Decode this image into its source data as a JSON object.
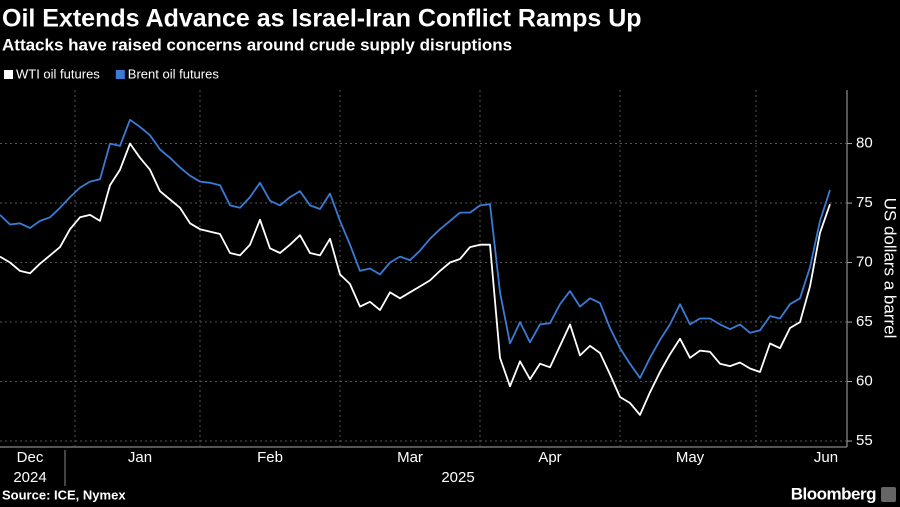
{
  "chart_data": {
    "type": "line",
    "title": "Oil Extends Advance as Israel-Iran Conflict Ramps Up",
    "subtitle": "Attacks have raised concerns around crude supply disruptions",
    "y_axis_label": "US dollars a barrel",
    "source": "Source: ICE, Nymex",
    "brand": "Bloomberg",
    "year_labels": [
      "2024",
      "2025"
    ],
    "categories": [
      null,
      null,
      null,
      "Dec",
      null,
      null,
      null,
      null,
      null,
      null,
      null,
      null,
      null,
      null,
      "Jan",
      null,
      null,
      null,
      null,
      null,
      null,
      null,
      null,
      null,
      null,
      null,
      null,
      "Feb",
      null,
      null,
      null,
      null,
      null,
      null,
      null,
      null,
      null,
      null,
      null,
      null,
      null,
      "Mar",
      null,
      null,
      null,
      null,
      null,
      null,
      null,
      null,
      null,
      null,
      null,
      null,
      null,
      "Apr",
      null,
      null,
      null,
      null,
      null,
      null,
      null,
      null,
      null,
      null,
      null,
      null,
      null,
      "May",
      null,
      null,
      null,
      null,
      null,
      null,
      null,
      null,
      null,
      null,
      null,
      null,
      null,
      "Jun"
    ],
    "series": [
      {
        "name": "WTI oil futures",
        "color": "#ffffff",
        "values": [
          70.5,
          70.0,
          69.3,
          69.1,
          69.9,
          70.6,
          71.3,
          72.8,
          73.8,
          74.0,
          73.5,
          76.5,
          77.8,
          80.0,
          78.8,
          77.8,
          76.0,
          75.3,
          74.6,
          73.3,
          72.8,
          72.6,
          72.4,
          70.8,
          70.6,
          71.5,
          73.6,
          71.2,
          70.8,
          71.5,
          72.3,
          70.8,
          70.6,
          72.0,
          69.0,
          68.2,
          66.3,
          66.7,
          66.0,
          67.5,
          67.0,
          67.5,
          68.0,
          68.5,
          69.3,
          70.0,
          70.3,
          71.3,
          71.5,
          71.5,
          62.0,
          59.6,
          61.7,
          60.2,
          61.5,
          61.2,
          63.0,
          64.8,
          62.2,
          63.0,
          62.4,
          60.6,
          58.7,
          58.2,
          57.2,
          59.1,
          60.8,
          62.3,
          63.6,
          62.0,
          62.6,
          62.5,
          61.5,
          61.3,
          61.6,
          61.1,
          60.8,
          63.2,
          62.8,
          64.5,
          65.0,
          68.0,
          72.5,
          74.9
        ]
      },
      {
        "name": "Brent oil futures",
        "color": "#3a7bd5",
        "values": [
          74.0,
          73.2,
          73.3,
          72.9,
          73.5,
          73.8,
          74.6,
          75.5,
          76.3,
          76.8,
          77.0,
          80.0,
          79.8,
          82.0,
          81.4,
          80.7,
          79.5,
          78.8,
          78.0,
          77.3,
          76.8,
          76.7,
          76.5,
          74.8,
          74.6,
          75.5,
          76.7,
          75.2,
          74.8,
          75.5,
          76.0,
          74.8,
          74.5,
          75.8,
          73.5,
          71.5,
          69.3,
          69.5,
          69.0,
          70.0,
          70.5,
          70.2,
          71.0,
          72.0,
          72.8,
          73.5,
          74.2,
          74.2,
          74.8,
          74.9,
          67.5,
          63.2,
          65.0,
          63.3,
          64.8,
          64.9,
          66.5,
          67.6,
          66.3,
          67.0,
          66.6,
          64.5,
          62.8,
          61.5,
          60.3,
          62.0,
          63.5,
          64.8,
          66.5,
          64.8,
          65.3,
          65.3,
          64.8,
          64.4,
          64.8,
          64.1,
          64.3,
          65.5,
          65.3,
          66.5,
          67.0,
          69.6,
          73.5,
          76.1
        ]
      }
    ],
    "ylim": [
      54.5,
      84.5
    ],
    "yticks": [
      55,
      60,
      65,
      70,
      75,
      80
    ],
    "grid": true
  }
}
